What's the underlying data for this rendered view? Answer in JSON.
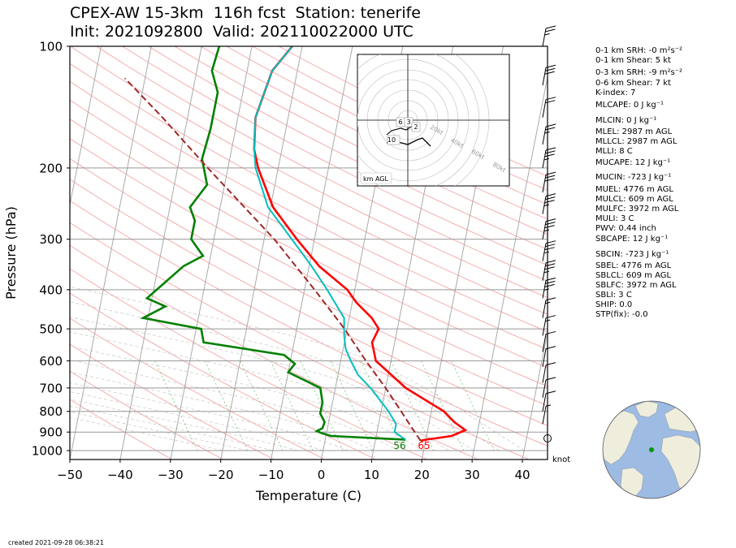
{
  "title_line1": "CPEX-AW 15-3km  116h fcst  Station: tenerife",
  "title_line2": "Init: 2021092800  Valid: 202110022000 UTC",
  "created": "created 2021-09-28 06:38:21",
  "knot_label": "knot",
  "hodograph": {
    "label": "km AGL",
    "ring_labels": [
      "20kt",
      "40kt",
      "60kt",
      "80kt"
    ],
    "height_labels": [
      "6",
      "3",
      "2",
      "10"
    ]
  },
  "indices": [
    "0-1 km SRH: -0 m²s⁻²",
    "0-1 km Shear: 5 kt",
    "0-3 km SRH: -9 m²s⁻²",
    "0-6 km Shear: 7 kt",
    "K-index: 7",
    "MLCAPE: 0 J kg⁻¹",
    "MLCIN: 0 J kg⁻¹",
    "MLEL: 2987 m AGL",
    "MLLCL: 2987 m AGL",
    "MLLI: 8 C",
    "MUCAPE: 12 J kg⁻¹",
    "MUCIN: -723 J kg⁻¹",
    "MUEL: 4776 m AGL",
    "MULCL: 609 m AGL",
    "MULFC: 3972 m AGL",
    "MULI: 3 C",
    "PWV: 0.44 inch",
    "SBCAPE: 12 J kg⁻¹",
    "SBCIN: -723 J kg⁻¹",
    "SBEL: 4776 m AGL",
    "SBLCL: 609 m AGL",
    "SBLFC: 3972 m AGL",
    "SBLI: 3 C",
    "SHIP: 0.0",
    "STP(fix): -0.0"
  ],
  "colors": {
    "temperature": "#ff0000",
    "dewpoint": "#008000",
    "wetbulb": "#00bfbf",
    "parcel": "#9e2a2a",
    "isotherm": "#aaaaaa",
    "dry_adiabat": "#f4a6a6",
    "moist_adiabat": "#c8c8c8",
    "mixing_ratio": "#7cc07c",
    "ocean": "#9dbbe3",
    "land": "#efeedd"
  },
  "chart_data": {
    "type": "line",
    "chart_kind": "skew-T log-P sounding",
    "xlabel": "Temperature (C)",
    "ylabel": "Pressure (hPa)",
    "xlim": [
      -50,
      45
    ],
    "ylim": [
      1050,
      100
    ],
    "y_scale": "log",
    "x_ticks": [
      -50,
      -40,
      -30,
      -20,
      -10,
      0,
      10,
      20,
      30,
      40
    ],
    "y_ticks": [
      100,
      200,
      300,
      400,
      500,
      600,
      700,
      800,
      900,
      1000
    ],
    "grid": true,
    "surface_labels": {
      "temperature_f": "65",
      "dewpoint_f": "56"
    },
    "series": [
      {
        "key": "temperature",
        "points": [
          [
            100,
            -22
          ],
          [
            115,
            -25
          ],
          [
            150,
            -26.5
          ],
          [
            180,
            -25.5
          ],
          [
            200,
            -24
          ],
          [
            250,
            -19.5
          ],
          [
            300,
            -13.5
          ],
          [
            350,
            -8
          ],
          [
            400,
            -1.5
          ],
          [
            430,
            0.8
          ],
          [
            470,
            4.5
          ],
          [
            500,
            6.3
          ],
          [
            540,
            5.5
          ],
          [
            600,
            7
          ],
          [
            700,
            14
          ],
          [
            800,
            22.5
          ],
          [
            850,
            25
          ],
          [
            890,
            27.5
          ],
          [
            920,
            25
          ],
          [
            940,
            20
          ],
          [
            945,
            19
          ]
        ]
      },
      {
        "key": "dewpoint",
        "points": [
          [
            100,
            -36.5
          ],
          [
            115,
            -37
          ],
          [
            130,
            -35
          ],
          [
            160,
            -35
          ],
          [
            190,
            -35.5
          ],
          [
            220,
            -33.5
          ],
          [
            250,
            -36
          ],
          [
            270,
            -34.5
          ],
          [
            300,
            -34.5
          ],
          [
            330,
            -31.5
          ],
          [
            350,
            -35
          ],
          [
            420,
            -41
          ],
          [
            440,
            -37
          ],
          [
            470,
            -41
          ],
          [
            500,
            -29
          ],
          [
            540,
            -28
          ],
          [
            580,
            -11.5
          ],
          [
            610,
            -9
          ],
          [
            640,
            -10
          ],
          [
            700,
            -3
          ],
          [
            760,
            -2
          ],
          [
            810,
            -2
          ],
          [
            850,
            -0.8
          ],
          [
            880,
            -1
          ],
          [
            895,
            -2
          ],
          [
            905,
            -1
          ],
          [
            920,
            1
          ],
          [
            940,
            16
          ]
        ]
      },
      {
        "key": "wetbulb",
        "points": [
          [
            100,
            -22
          ],
          [
            115,
            -25
          ],
          [
            150,
            -26.5
          ],
          [
            180,
            -25.5
          ],
          [
            200,
            -24.5
          ],
          [
            250,
            -20.5
          ],
          [
            300,
            -14.5
          ],
          [
            350,
            -9.5
          ],
          [
            400,
            -5.5
          ],
          [
            470,
            -1
          ],
          [
            520,
            -0.3
          ],
          [
            560,
            0.5
          ],
          [
            600,
            2
          ],
          [
            650,
            4
          ],
          [
            700,
            7
          ],
          [
            800,
            11.5
          ],
          [
            860,
            13.5
          ],
          [
            900,
            13.5
          ],
          [
            940,
            16
          ]
        ]
      },
      {
        "key": "parcel",
        "points": [
          [
            945,
            19
          ],
          [
            900,
            17.5
          ],
          [
            870,
            16.5
          ],
          [
            800,
            14
          ],
          [
            700,
            10
          ],
          [
            600,
            5
          ],
          [
            500,
            -0.5
          ],
          [
            400,
            -8
          ],
          [
            300,
            -18
          ],
          [
            200,
            -34
          ],
          [
            150,
            -45
          ],
          [
            120,
            -54
          ]
        ]
      }
    ],
    "wind_barbs_kt": [
      {
        "p": 100,
        "speed": 25
      },
      {
        "p": 125,
        "speed": 30
      },
      {
        "p": 150,
        "speed": 20
      },
      {
        "p": 175,
        "speed": 25
      },
      {
        "p": 200,
        "speed": 35
      },
      {
        "p": 230,
        "speed": 30
      },
      {
        "p": 260,
        "speed": 35
      },
      {
        "p": 300,
        "speed": 35
      },
      {
        "p": 340,
        "speed": 35
      },
      {
        "p": 380,
        "speed": 35
      },
      {
        "p": 420,
        "speed": 35
      },
      {
        "p": 470,
        "speed": 15
      },
      {
        "p": 520,
        "speed": 15
      },
      {
        "p": 570,
        "speed": 10
      },
      {
        "p": 620,
        "speed": 10
      },
      {
        "p": 680,
        "speed": 10
      },
      {
        "p": 740,
        "speed": 10
      },
      {
        "p": 800,
        "speed": 10
      },
      {
        "p": 860,
        "speed": 5
      },
      {
        "p": 950,
        "speed": 0
      }
    ]
  }
}
